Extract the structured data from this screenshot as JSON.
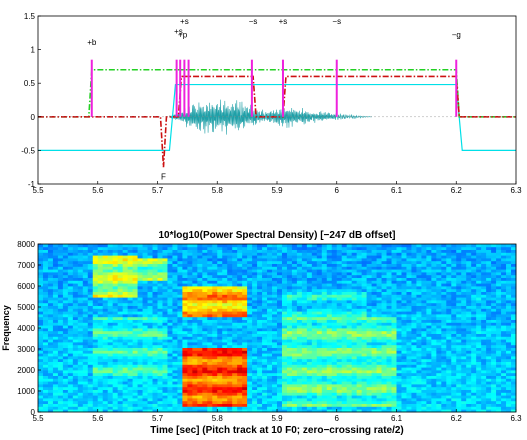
{
  "chart_data": [
    {
      "type": "line",
      "title": "",
      "xlabel": "",
      "ylabel": "",
      "xlim": [
        5.5,
        6.3
      ],
      "ylim": [
        -1,
        1.5
      ],
      "xticks": [
        "5.5",
        "5.6",
        "5.7",
        "5.8",
        "5.9",
        "6",
        "6.1",
        "6.2",
        "6.3"
      ],
      "yticks": [
        "-1",
        "-0.5",
        "0",
        "0.5",
        "1",
        "1.5"
      ],
      "grid": false,
      "annotations": [
        {
          "text": "+b",
          "x": 5.59,
          "y": 1.07
        },
        {
          "text": "+s",
          "x": 5.745,
          "y": 1.38
        },
        {
          "text": "+s",
          "x": 5.735,
          "y": 1.23
        },
        {
          "text": "+p",
          "x": 5.742,
          "y": 1.18
        },
        {
          "text": "−s",
          "x": 5.86,
          "y": 1.38
        },
        {
          "text": "+s",
          "x": 5.91,
          "y": 1.38
        },
        {
          "text": "−s",
          "x": 6.0,
          "y": 1.38
        },
        {
          "text": "−g",
          "x": 6.2,
          "y": 1.18
        },
        {
          "text": "F",
          "x": 5.71,
          "y": -0.93
        }
      ],
      "series": [
        {
          "style": "waveform",
          "color": "#20a0a8",
          "x": [
            5.72,
            5.76,
            5.8,
            5.84,
            5.88,
            5.92,
            5.96,
            6.0,
            6.06
          ],
          "y": [
            0.02,
            0.22,
            0.3,
            0.24,
            0.1,
            0.18,
            0.1,
            0.06,
            0.0
          ]
        },
        {
          "style": "solid",
          "color": "#00e0e8",
          "x": [
            5.5,
            5.72,
            5.73,
            6.2,
            6.21,
            6.3
          ],
          "y": [
            -0.5,
            -0.5,
            0.48,
            0.48,
            -0.5,
            -0.5
          ]
        },
        {
          "style": "dash-dot",
          "color": "#22d022",
          "x": [
            5.5,
            5.585,
            5.59,
            6.2,
            6.205,
            6.3
          ],
          "y": [
            0.0,
            0.0,
            0.7,
            0.7,
            0.0,
            0.0
          ]
        },
        {
          "style": "dash-dot",
          "color": "#cc1111",
          "x": [
            5.5,
            5.705,
            5.71,
            5.715,
            5.735,
            5.74,
            5.86,
            5.865,
            5.91,
            5.915,
            6.2,
            6.205,
            6.3
          ],
          "y": [
            0.0,
            0.0,
            -0.75,
            0.0,
            0.0,
            0.6,
            0.6,
            0.0,
            0.0,
            0.6,
            0.6,
            0.0,
            0.0
          ]
        },
        {
          "style": "pulses",
          "color": "#ee22dd",
          "x": [
            5.59,
            5.732,
            5.738,
            5.745,
            5.752,
            5.858,
            5.91,
            6.0,
            6.2
          ],
          "y": [
            0.85,
            0.85,
            0.85,
            0.85,
            0.85,
            0.85,
            0.85,
            0.85,
            0.85
          ]
        }
      ]
    },
    {
      "type": "heatmap",
      "title": "10*log10(Power Spectral Density)   [−247 dB offset]",
      "xlabel": "Time [sec] (Pitch track at 10 F0; zero−crossing rate/2)",
      "ylabel": "Frequency",
      "xlim": [
        5.5,
        6.3
      ],
      "ylim": [
        0,
        8000
      ],
      "xticks": [
        "5.5",
        "5.6",
        "5.7",
        "5.8",
        "5.9",
        "6",
        "6.1",
        "6.2",
        "6.3"
      ],
      "yticks": [
        "0",
        "1000",
        "2000",
        "3000",
        "4000",
        "5000",
        "6000",
        "7000",
        "8000"
      ],
      "grid": false,
      "colormap": "jet",
      "energy_regions": [
        {
          "x": [
            5.59,
            5.67
          ],
          "y": [
            5500,
            7500
          ],
          "level": 0.6
        },
        {
          "x": [
            5.59,
            5.72
          ],
          "y": [
            1500,
            4500
          ],
          "level": 0.45
        },
        {
          "x": [
            5.65,
            5.72
          ],
          "y": [
            6300,
            7400
          ],
          "level": 0.55
        },
        {
          "x": [
            5.745,
            5.85
          ],
          "y": [
            300,
            3000
          ],
          "level": 0.85
        },
        {
          "x": [
            5.745,
            5.85
          ],
          "y": [
            4500,
            6000
          ],
          "level": 0.75
        },
        {
          "x": [
            5.91,
            6.1
          ],
          "y": [
            300,
            4500
          ],
          "level": 0.5
        },
        {
          "x": [
            5.91,
            6.05
          ],
          "y": [
            4500,
            6000
          ],
          "level": 0.4
        },
        {
          "x": [
            6.23,
            6.25
          ],
          "y": [
            3800,
            5500
          ],
          "level": 0.35
        }
      ]
    }
  ]
}
